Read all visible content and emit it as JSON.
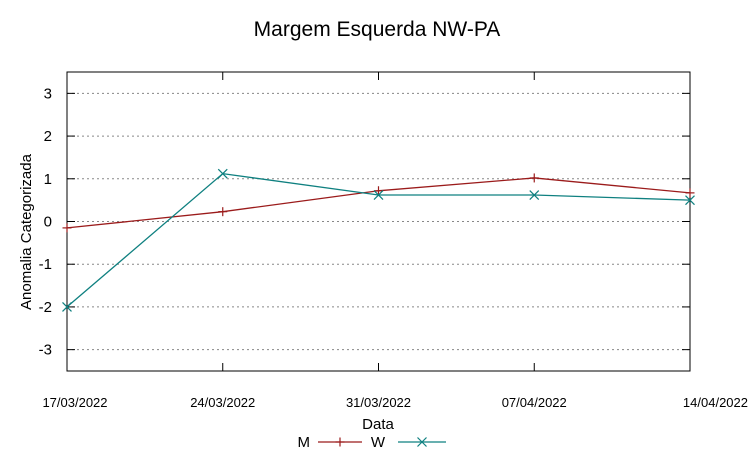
{
  "chart_data": {
    "type": "line",
    "title": "Margem Esquerda NW-PA",
    "xlabel": "Data",
    "ylabel": "Anomalia Categorizada",
    "categories": [
      "17/03/2022",
      "24/03/2022",
      "31/03/2022",
      "07/04/2022",
      "14/04/2022"
    ],
    "ylim": [
      -3.5,
      3.5
    ],
    "yticks": [
      -3,
      -2,
      -1,
      0,
      1,
      2,
      3
    ],
    "grid": true,
    "legend_position": "bottom",
    "series": [
      {
        "name": "M",
        "values": [
          -0.15,
          0.23,
          0.72,
          1.02,
          0.67
        ],
        "color": "#9b1b1b",
        "marker": "plus"
      },
      {
        "name": "W",
        "values": [
          -2.0,
          1.12,
          0.62,
          0.62,
          0.5
        ],
        "color": "#0f8080",
        "marker": "cross"
      }
    ]
  }
}
